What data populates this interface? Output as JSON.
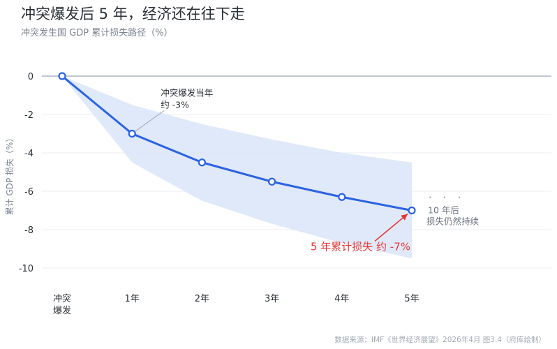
{
  "title": "冲突爆发后 5 年，经济还在往下走",
  "subtitle": "冲突发生国 GDP 累计损失路径（%）",
  "source": "数据来源：IMF《世界经济展望》2026年4月 图3.4（府库绘制）",
  "colors": {
    "line": "#2b63e0",
    "band": "#dbe5f8",
    "zero_line": "#9aa5b4",
    "grid": "#e9edf2",
    "callout_red": "#e03a3a",
    "leader_gray": "#9aa3ad"
  },
  "chart_data": {
    "type": "line",
    "categories": [
      "冲突爆发",
      "1年",
      "2年",
      "3年",
      "4年",
      "5年"
    ],
    "category_display": [
      [
        "冲突",
        "爆发"
      ],
      [
        "1年"
      ],
      [
        "2年"
      ],
      [
        "3年"
      ],
      [
        "4年"
      ],
      [
        "5年"
      ]
    ],
    "series": [
      {
        "values": [
          0,
          -3,
          -4.5,
          -5.5,
          -6.3,
          -7
        ],
        "band_upper": [
          0,
          -1.5,
          -2.5,
          -3.3,
          -4,
          -4.5
        ],
        "band_lower": [
          0,
          -4.5,
          -6.5,
          -7.7,
          -8.7,
          -9.5
        ]
      }
    ],
    "ylabel": "累计 GDP 损失（%）",
    "yticks": [
      0,
      -2,
      -4,
      -6,
      -8,
      -10
    ],
    "ylim": [
      -10.5,
      0.5
    ],
    "grid": true,
    "annotations": {
      "year1": [
        "冲突爆发当年",
        "约 -3%"
      ],
      "year5": "5 年累计损失 约 -7%",
      "continuation_dots": "· · ·",
      "continuation": [
        "10 年后",
        "损失仍然持续"
      ]
    }
  }
}
